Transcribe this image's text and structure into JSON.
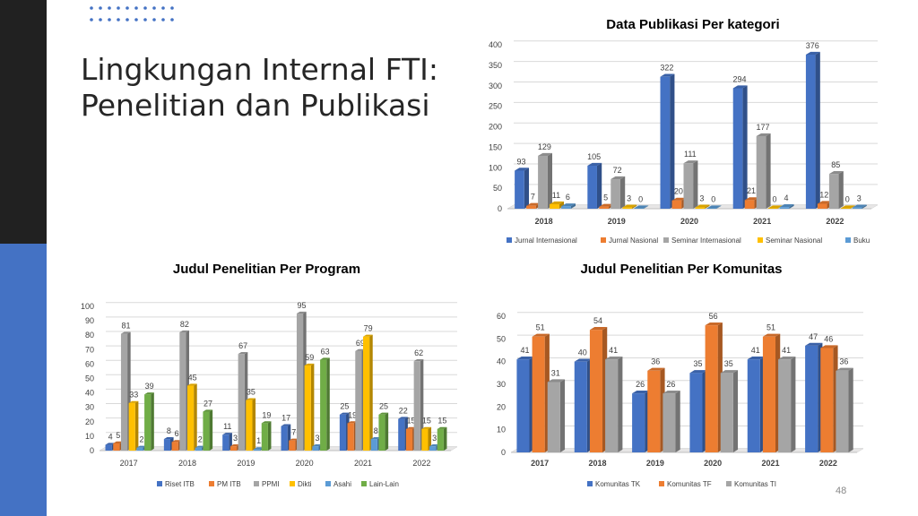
{
  "slide": {
    "title_line1": "Lingkungan Internal FTI:",
    "title_line2": "Penelitian dan Publikasi",
    "page_number": "48",
    "accent_dark": "#212121",
    "accent_blue": "#4472c4"
  },
  "chart_data": [
    {
      "id": "publikasi",
      "type": "bar",
      "title": "Data Publikasi Per kategori",
      "categories": [
        "2018",
        "2019",
        "2020",
        "2021",
        "2022"
      ],
      "ylim": [
        0,
        400
      ],
      "yticks": [
        0,
        50,
        100,
        150,
        200,
        250,
        300,
        350,
        400
      ],
      "grid": true,
      "legend_position": "bottom",
      "series": [
        {
          "name": "Jurnal Internasional",
          "color": "#4472c4",
          "values": [
            93,
            105,
            322,
            294,
            376
          ]
        },
        {
          "name": "Jurnal Nasional",
          "color": "#ed7d31",
          "values": [
            7,
            5,
            20,
            21,
            12
          ]
        },
        {
          "name": "Seminar Internasional",
          "color": "#a5a5a5",
          "values": [
            129,
            72,
            111,
            177,
            85
          ]
        },
        {
          "name": "Seminar Nasional",
          "color": "#ffc000",
          "values": [
            11,
            3,
            3,
            0,
            0
          ]
        },
        {
          "name": "Buku",
          "color": "#5b9bd5",
          "values": [
            6,
            0,
            0,
            4,
            3
          ]
        }
      ]
    },
    {
      "id": "program",
      "type": "bar",
      "title": "Judul Penelitian Per Program",
      "categories": [
        "2017",
        "2018",
        "2019",
        "2020",
        "2021",
        "2022"
      ],
      "ylim": [
        0,
        100
      ],
      "yticks": [
        0,
        10,
        20,
        30,
        40,
        50,
        60,
        70,
        80,
        90,
        100
      ],
      "grid": true,
      "legend_position": "bottom",
      "series": [
        {
          "name": "Riset ITB",
          "color": "#4472c4",
          "values": [
            4,
            8,
            11,
            17,
            25,
            22
          ]
        },
        {
          "name": "PM ITB",
          "color": "#ed7d31",
          "values": [
            5,
            6,
            3,
            7,
            19,
            15
          ]
        },
        {
          "name": "PPMI",
          "color": "#a5a5a5",
          "values": [
            81,
            82,
            67,
            95,
            69,
            62
          ]
        },
        {
          "name": "Dikti",
          "color": "#ffc000",
          "values": [
            33,
            45,
            35,
            59,
            79,
            15
          ]
        },
        {
          "name": "Asahi",
          "color": "#5b9bd5",
          "values": [
            2,
            2,
            1,
            3,
            8,
            3
          ]
        },
        {
          "name": "Lain-Lain",
          "color": "#70ad47",
          "values": [
            39,
            27,
            19,
            63,
            25,
            15
          ]
        }
      ]
    },
    {
      "id": "komunitas",
      "type": "bar",
      "title": "Judul Penelitian Per Komunitas",
      "categories": [
        "2017",
        "2018",
        "2019",
        "2020",
        "2021",
        "2022"
      ],
      "ylim": [
        0,
        60
      ],
      "yticks": [
        0,
        10,
        20,
        30,
        40,
        50,
        60
      ],
      "grid": true,
      "legend_position": "bottom",
      "series": [
        {
          "name": "Komunitas TK",
          "color": "#4472c4",
          "values": [
            41,
            40,
            26,
            35,
            41,
            47
          ]
        },
        {
          "name": "Komunitas TF",
          "color": "#ed7d31",
          "values": [
            51,
            54,
            36,
            56,
            51,
            46
          ]
        },
        {
          "name": "Komunitas TI",
          "color": "#a5a5a5",
          "values": [
            31,
            41,
            26,
            35,
            41,
            36
          ]
        }
      ]
    }
  ]
}
